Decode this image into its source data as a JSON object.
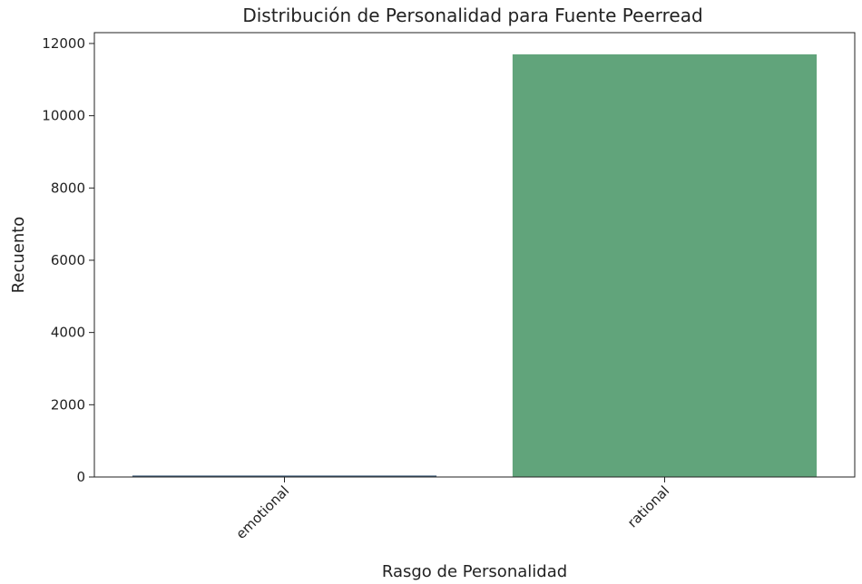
{
  "chart_data": {
    "type": "bar",
    "title": "Distribución de Personalidad para Fuente Peerread",
    "xlabel": "Rasgo de Personalidad",
    "ylabel": "Recuento",
    "categories": [
      "emotional",
      "rational"
    ],
    "values": [
      40,
      11700
    ],
    "ylim": [
      0,
      12300
    ],
    "yticks": [
      0,
      2000,
      4000,
      6000,
      8000,
      10000,
      12000
    ],
    "ytick_labels": [
      "0",
      "2000",
      "4000",
      "6000",
      "8000",
      "10000",
      "12000"
    ],
    "x_tick_rotation_deg": 45,
    "grid": false,
    "legend": "none",
    "colors": [
      "#3b5a78",
      "#61a47b"
    ]
  }
}
